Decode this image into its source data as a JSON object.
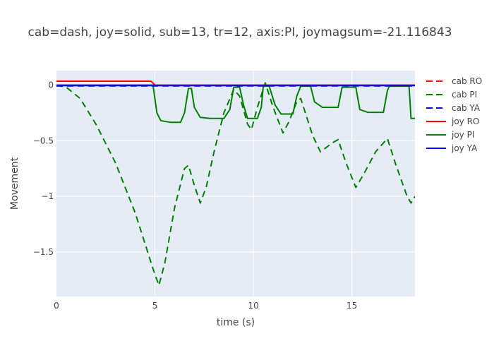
{
  "chart_data": {
    "type": "line",
    "title": "cab=dash, joy=solid, sub=13, tr=12, axis:PI, joymagsum=-21.116843",
    "xlabel": "time (s)",
    "ylabel": "Movement",
    "xlim": [
      0,
      18.2
    ],
    "ylim": [
      -1.9,
      0.13
    ],
    "x_ticks": [
      0,
      5,
      10,
      15
    ],
    "x_tick_labels": [
      "0",
      "5",
      "10",
      "15"
    ],
    "y_ticks": [
      0,
      -0.5,
      -1,
      -1.5
    ],
    "y_tick_labels": [
      "0",
      "−0.5",
      "−1",
      "−1.5"
    ],
    "grid": true,
    "legend_position": "right",
    "series": [
      {
        "name": "cab RO",
        "color": "#ff0000",
        "dash": true,
        "points": [
          [
            0,
            0
          ],
          [
            18.2,
            0
          ]
        ]
      },
      {
        "name": "cab PI",
        "color": "#008000",
        "dash": true,
        "points": [
          [
            0,
            0
          ],
          [
            0.5,
            -0.02
          ],
          [
            1.2,
            -0.12
          ],
          [
            2.0,
            -0.35
          ],
          [
            3.0,
            -0.7
          ],
          [
            4.0,
            -1.15
          ],
          [
            4.9,
            -1.65
          ],
          [
            5.2,
            -1.8
          ],
          [
            5.5,
            -1.6
          ],
          [
            6.0,
            -1.1
          ],
          [
            6.5,
            -0.75
          ],
          [
            6.7,
            -0.72
          ],
          [
            7.0,
            -0.9
          ],
          [
            7.3,
            -1.06
          ],
          [
            7.6,
            -0.92
          ],
          [
            8.0,
            -0.6
          ],
          [
            8.5,
            -0.25
          ],
          [
            9.0,
            -0.04
          ],
          [
            9.3,
            -0.1
          ],
          [
            9.7,
            -0.35
          ],
          [
            9.9,
            -0.4
          ],
          [
            10.2,
            -0.2
          ],
          [
            10.6,
            0.02
          ],
          [
            11.0,
            -0.2
          ],
          [
            11.5,
            -0.43
          ],
          [
            11.8,
            -0.33
          ],
          [
            12.2,
            -0.15
          ],
          [
            12.4,
            -0.12
          ],
          [
            13.0,
            -0.45
          ],
          [
            13.4,
            -0.6
          ],
          [
            14.0,
            -0.52
          ],
          [
            14.3,
            -0.49
          ],
          [
            14.7,
            -0.7
          ],
          [
            15.2,
            -0.92
          ],
          [
            15.6,
            -0.8
          ],
          [
            16.2,
            -0.6
          ],
          [
            16.8,
            -0.48
          ],
          [
            17.2,
            -0.7
          ],
          [
            17.8,
            -1.0
          ],
          [
            18.0,
            -1.06
          ],
          [
            18.2,
            -1.0
          ]
        ]
      },
      {
        "name": "cab YA",
        "color": "#0000ff",
        "dash": true,
        "points": [
          [
            0,
            -0.008
          ],
          [
            18.2,
            -0.008
          ]
        ]
      },
      {
        "name": "joy RO",
        "color": "#ff0000",
        "dash": false,
        "points": [
          [
            0,
            0.035
          ],
          [
            4.8,
            0.035
          ],
          [
            5.0,
            0
          ],
          [
            18.2,
            0
          ]
        ]
      },
      {
        "name": "joy PI",
        "color": "#008000",
        "dash": false,
        "points": [
          [
            0,
            0
          ],
          [
            4.9,
            0
          ],
          [
            5.1,
            -0.25
          ],
          [
            5.3,
            -0.32
          ],
          [
            5.8,
            -0.335
          ],
          [
            6.3,
            -0.335
          ],
          [
            6.5,
            -0.25
          ],
          [
            6.7,
            -0.03
          ],
          [
            6.85,
            -0.03
          ],
          [
            7.0,
            -0.2
          ],
          [
            7.3,
            -0.29
          ],
          [
            7.8,
            -0.3
          ],
          [
            8.5,
            -0.3
          ],
          [
            8.8,
            -0.22
          ],
          [
            9.0,
            -0.02
          ],
          [
            9.3,
            -0.02
          ],
          [
            9.5,
            -0.18
          ],
          [
            9.7,
            -0.3
          ],
          [
            10.2,
            -0.3
          ],
          [
            10.4,
            -0.2
          ],
          [
            10.5,
            -0.01
          ],
          [
            10.8,
            -0.01
          ],
          [
            11.1,
            -0.18
          ],
          [
            11.4,
            -0.26
          ],
          [
            12.0,
            -0.26
          ],
          [
            12.2,
            -0.1
          ],
          [
            12.4,
            -0.01
          ],
          [
            12.9,
            -0.01
          ],
          [
            13.1,
            -0.15
          ],
          [
            13.5,
            -0.2
          ],
          [
            14.3,
            -0.2
          ],
          [
            14.5,
            -0.02
          ],
          [
            15.2,
            -0.02
          ],
          [
            15.4,
            -0.22
          ],
          [
            15.8,
            -0.245
          ],
          [
            16.6,
            -0.245
          ],
          [
            16.8,
            -0.05
          ],
          [
            16.9,
            -0.01
          ],
          [
            17.9,
            -0.01
          ],
          [
            18.0,
            -0.3
          ],
          [
            18.2,
            -0.3
          ]
        ]
      },
      {
        "name": "joy YA",
        "color": "#0000ff",
        "dash": false,
        "points": [
          [
            0,
            -0.005
          ],
          [
            18.2,
            -0.005
          ]
        ]
      }
    ]
  }
}
